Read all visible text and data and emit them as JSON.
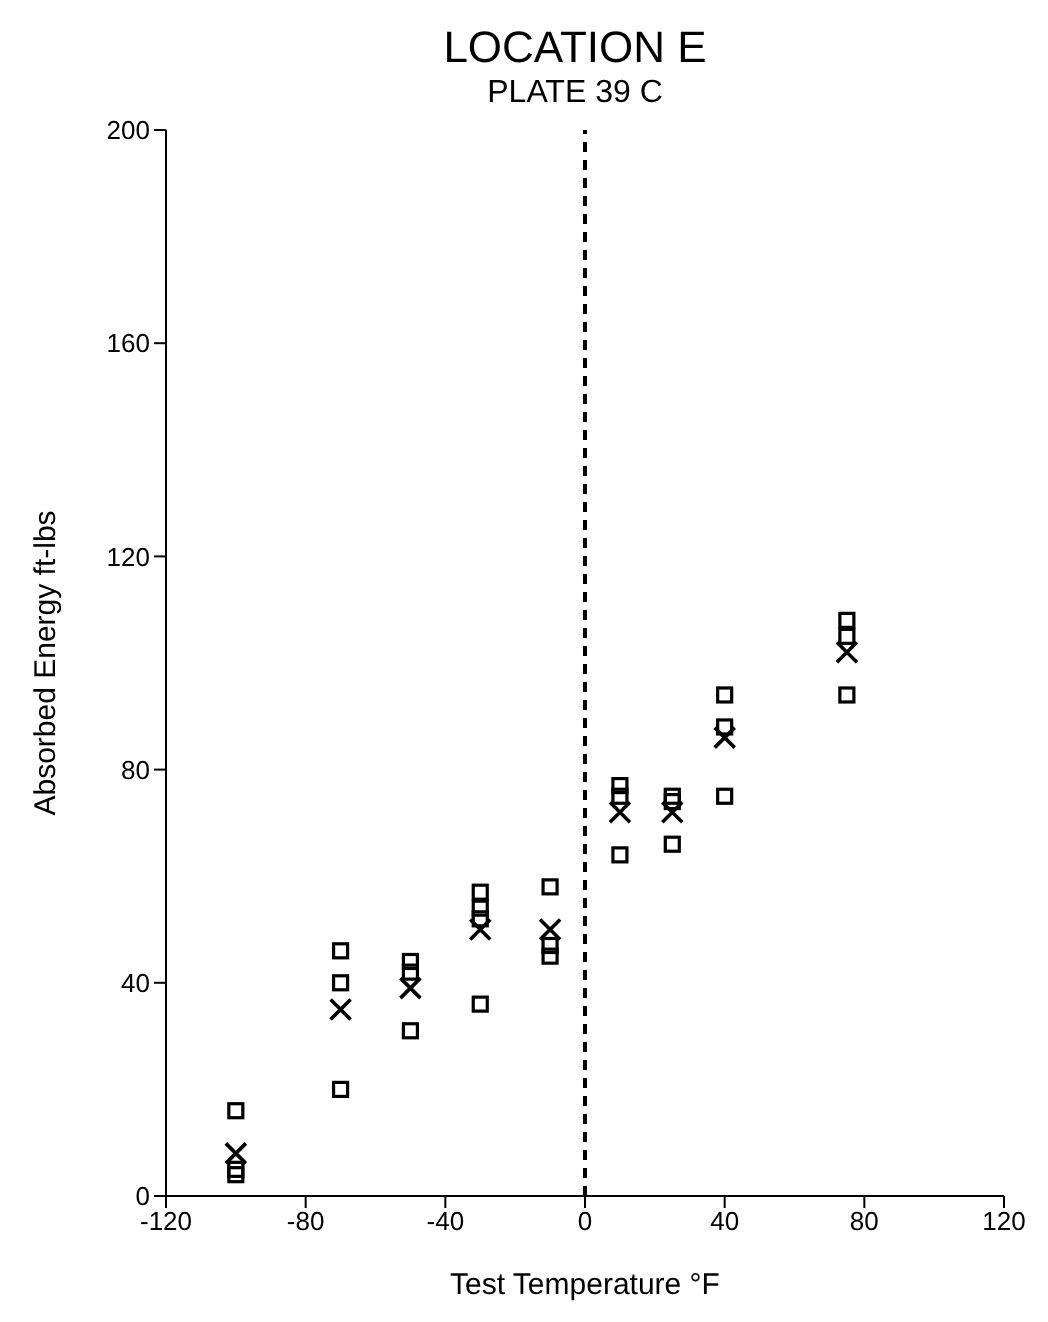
{
  "chart_data": {
    "type": "scatter",
    "title": "LOCATION E",
    "subtitle": "PLATE 39 C",
    "xlabel": "Test Temperature °F",
    "ylabel": "Absorbed Energy ft-lbs",
    "xlim": [
      -120,
      120
    ],
    "xticks": [
      -120,
      -80,
      -40,
      0,
      40,
      80,
      120
    ],
    "ylim": [
      0,
      200
    ],
    "yticks": [
      0,
      40,
      80,
      120,
      160,
      200
    ],
    "ref_lines": [
      {
        "axis": "x",
        "value": 0,
        "line_style": "dashed",
        "color": "#000000"
      }
    ],
    "series": [
      {
        "color": "#000000",
        "marker": "square",
        "x": [
          75,
          75,
          75,
          40,
          40,
          40,
          25,
          25,
          25,
          10,
          10,
          10,
          -10,
          -10,
          -10,
          -30,
          -30,
          -30,
          -30,
          -50,
          -50,
          -50,
          -70,
          -70,
          -70,
          -100,
          -100,
          -100
        ],
        "values": [
          108,
          105,
          94,
          94,
          88,
          75,
          75,
          74,
          66,
          77,
          75,
          64,
          58,
          47,
          45,
          57,
          54,
          52,
          36,
          44,
          42,
          31,
          46,
          40,
          20,
          16,
          5,
          4
        ]
      },
      {
        "color": "#000000",
        "marker": "cross",
        "x": [
          75,
          40,
          25,
          10,
          -10,
          -30,
          -50,
          -70,
          -100
        ],
        "values": [
          102,
          86,
          72,
          72,
          50,
          50,
          39,
          35,
          8
        ]
      }
    ]
  }
}
